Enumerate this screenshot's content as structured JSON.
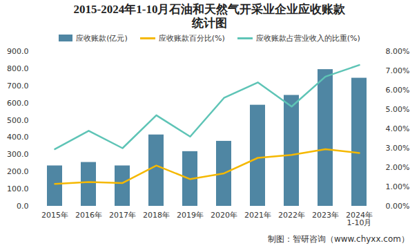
{
  "chart_data": {
    "type": "bar",
    "title": "2015-2024年1-10月石油和天然气开采业企业应收账款统计图",
    "source": "制图：智研咨询（www.chyxx.com）",
    "categories": [
      "2015年",
      "2016年",
      "2017年",
      "2018年",
      "2019年",
      "2020年",
      "2021年",
      "2022年",
      "2023年",
      "2024年\n1-10月"
    ],
    "series": [
      {
        "name": "应收账款(亿元)",
        "type": "bar",
        "axis": "y",
        "color": "#4f86a3",
        "values": [
          235,
          255,
          235,
          415,
          318,
          378,
          588,
          645,
          795,
          745
        ]
      },
      {
        "name": "应收账款百分比(%)",
        "type": "line",
        "axis": "y2",
        "color": "#f5b800",
        "values": [
          1.15,
          1.25,
          1.2,
          2.1,
          1.4,
          1.7,
          2.5,
          2.65,
          2.95,
          2.75
        ]
      },
      {
        "name": "应收账款占营业收入的比重(%)",
        "type": "line",
        "axis": "y2",
        "color": "#5ec4b6",
        "values": [
          2.95,
          3.9,
          3.0,
          4.7,
          3.6,
          5.6,
          6.4,
          5.15,
          6.7,
          7.3
        ]
      }
    ],
    "ylim": [
      0,
      900
    ],
    "yticks": [
      {
        "value": 0,
        "label": "0.0"
      },
      {
        "value": 100,
        "label": "100.0"
      },
      {
        "value": 200,
        "label": "200.0"
      },
      {
        "value": 300,
        "label": "300.0"
      },
      {
        "value": 400,
        "label": "400.0"
      },
      {
        "value": 500,
        "label": "500.0"
      },
      {
        "value": 600,
        "label": "600.0"
      },
      {
        "value": 700,
        "label": "700.0"
      },
      {
        "value": 800,
        "label": "800.0"
      },
      {
        "value": 900,
        "label": "900.0"
      }
    ],
    "y2lim": [
      0,
      8
    ],
    "y2ticks": [
      {
        "value": 0,
        "label": "0.00%"
      },
      {
        "value": 1,
        "label": "1.00%"
      },
      {
        "value": 2,
        "label": "2.00%"
      },
      {
        "value": 3,
        "label": "3.00%"
      },
      {
        "value": 4,
        "label": "4.00%"
      },
      {
        "value": 5,
        "label": "5.00%"
      },
      {
        "value": 6,
        "label": "6.00%"
      },
      {
        "value": 7,
        "label": "7.00%"
      },
      {
        "value": 8,
        "label": "8.00%"
      }
    ],
    "legend": "top",
    "grid": false
  }
}
